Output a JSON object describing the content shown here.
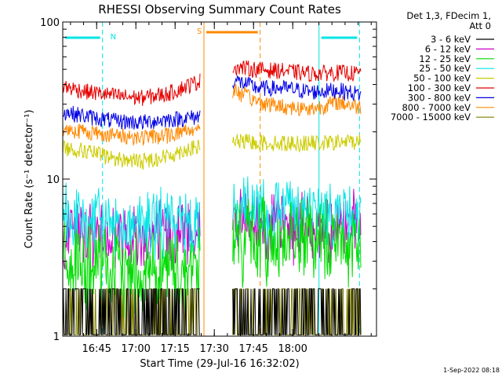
{
  "chart_data": {
    "type": "line",
    "title": "RHESSI Observing Summary Count Rates",
    "xlabel": "Start Time (29-Jul-16 16:32:02)",
    "ylabel": "Count Rate (s⁻¹ detector⁻¹)",
    "yscale": "log",
    "ylim": [
      1,
      100
    ],
    "xlim_minutes": [
      0,
      120
    ],
    "x_tick_labels": [
      "16:45",
      "17:00",
      "17:15",
      "17:30",
      "17:45",
      "18:00"
    ],
    "x_tick_minutes": [
      12.967,
      27.967,
      42.967,
      57.967,
      72.967,
      87.967
    ],
    "y_tick_labels": [
      "1",
      "10",
      "100"
    ],
    "y_tick_values": [
      1,
      10,
      100
    ],
    "legend_header": [
      "Det 1,3, FDecim 1,",
      "Att 0"
    ],
    "legend_position": "right",
    "footer_date": "1-Sep-2022 08:18",
    "data_gaps_minutes": [
      [
        52.5,
        65.0
      ]
    ],
    "series": [
      {
        "name": "3 - 6 keV",
        "color": "#000000",
        "points": [
          [
            0,
            1.6
          ],
          [
            15,
            1.6
          ],
          [
            30,
            1.6
          ],
          [
            52,
            1.6
          ],
          [
            65,
            1.6
          ],
          [
            80,
            1.6
          ],
          [
            100,
            1.6
          ],
          [
            113,
            1.6
          ]
        ]
      },
      {
        "name": "6 - 12 keV",
        "color": "#cc00cc",
        "points": [
          [
            0,
            4.8
          ],
          [
            15,
            4.5
          ],
          [
            30,
            4.4
          ],
          [
            45,
            4.6
          ],
          [
            52,
            4.8
          ],
          [
            65,
            5.3
          ],
          [
            80,
            5.2
          ],
          [
            100,
            5.0
          ],
          [
            113,
            5.1
          ]
        ]
      },
      {
        "name": "12 - 25 keV",
        "color": "#00dd00",
        "points": [
          [
            0,
            3.2
          ],
          [
            15,
            3.0
          ],
          [
            30,
            2.9
          ],
          [
            45,
            3.0
          ],
          [
            52,
            3.1
          ],
          [
            65,
            4.6
          ],
          [
            80,
            4.5
          ],
          [
            100,
            4.4
          ],
          [
            113,
            4.5
          ]
        ]
      },
      {
        "name": "25 - 50 keV",
        "color": "#00e5e5",
        "points": [
          [
            0,
            5.6
          ],
          [
            15,
            5.3
          ],
          [
            30,
            5.2
          ],
          [
            45,
            5.4
          ],
          [
            52,
            5.8
          ],
          [
            65,
            6.4
          ],
          [
            80,
            6.3
          ],
          [
            100,
            6.2
          ],
          [
            113,
            6.3
          ]
        ]
      },
      {
        "name": "50 - 100 keV",
        "color": "#cccc00",
        "points": [
          [
            0,
            16
          ],
          [
            10,
            15
          ],
          [
            20,
            13.5
          ],
          [
            30,
            13
          ],
          [
            40,
            14
          ],
          [
            47,
            15.5
          ],
          [
            52,
            16
          ],
          [
            65,
            17.5
          ],
          [
            80,
            17
          ],
          [
            100,
            17
          ],
          [
            113,
            17.5
          ]
        ]
      },
      {
        "name": "100 - 300 keV",
        "color": "#e60000",
        "points": [
          [
            0,
            39
          ],
          [
            10,
            36
          ],
          [
            20,
            34
          ],
          [
            30,
            33
          ],
          [
            40,
            35
          ],
          [
            47,
            39
          ],
          [
            52,
            42
          ],
          [
            65,
            52
          ],
          [
            75,
            50
          ],
          [
            85,
            49
          ],
          [
            95,
            47
          ],
          [
            105,
            48
          ],
          [
            113,
            47
          ]
        ]
      },
      {
        "name": "300 - 800 keV",
        "color": "#0000e6",
        "points": [
          [
            0,
            27
          ],
          [
            10,
            25
          ],
          [
            20,
            23.5
          ],
          [
            30,
            23
          ],
          [
            40,
            24
          ],
          [
            47,
            24.5
          ],
          [
            52,
            25
          ],
          [
            65,
            43
          ],
          [
            75,
            38
          ],
          [
            85,
            38
          ],
          [
            95,
            36
          ],
          [
            105,
            37
          ],
          [
            113,
            35
          ]
        ]
      },
      {
        "name": "800 - 7000 keV",
        "color": "#ff8800",
        "points": [
          [
            0,
            21
          ],
          [
            10,
            20
          ],
          [
            20,
            19
          ],
          [
            30,
            18.5
          ],
          [
            40,
            19
          ],
          [
            47,
            20.5
          ],
          [
            52,
            21
          ],
          [
            65,
            37
          ],
          [
            75,
            31
          ],
          [
            85,
            29
          ],
          [
            95,
            28
          ],
          [
            105,
            31
          ],
          [
            113,
            29
          ]
        ]
      },
      {
        "name": "7000 - 15000 keV",
        "color": "#808000",
        "points": [
          [
            0,
            1.5
          ],
          [
            15,
            1.5
          ],
          [
            30,
            1.5
          ],
          [
            52,
            1.5
          ],
          [
            65,
            1.5
          ],
          [
            80,
            1.5
          ],
          [
            100,
            1.5
          ],
          [
            113,
            1.5
          ]
        ]
      }
    ],
    "bars": [
      {
        "label": "N",
        "color": "#00e5e5",
        "intervals": [
          [
            0,
            15.2
          ],
          [
            98,
            113.5
          ]
        ],
        "boundaries": [
          0,
          15.2,
          98,
          113.5
        ]
      },
      {
        "label": "S",
        "color": "#ff8800",
        "intervals": [
          [
            54,
            75.5
          ]
        ],
        "boundaries": [
          54,
          75.5
        ]
      }
    ]
  }
}
